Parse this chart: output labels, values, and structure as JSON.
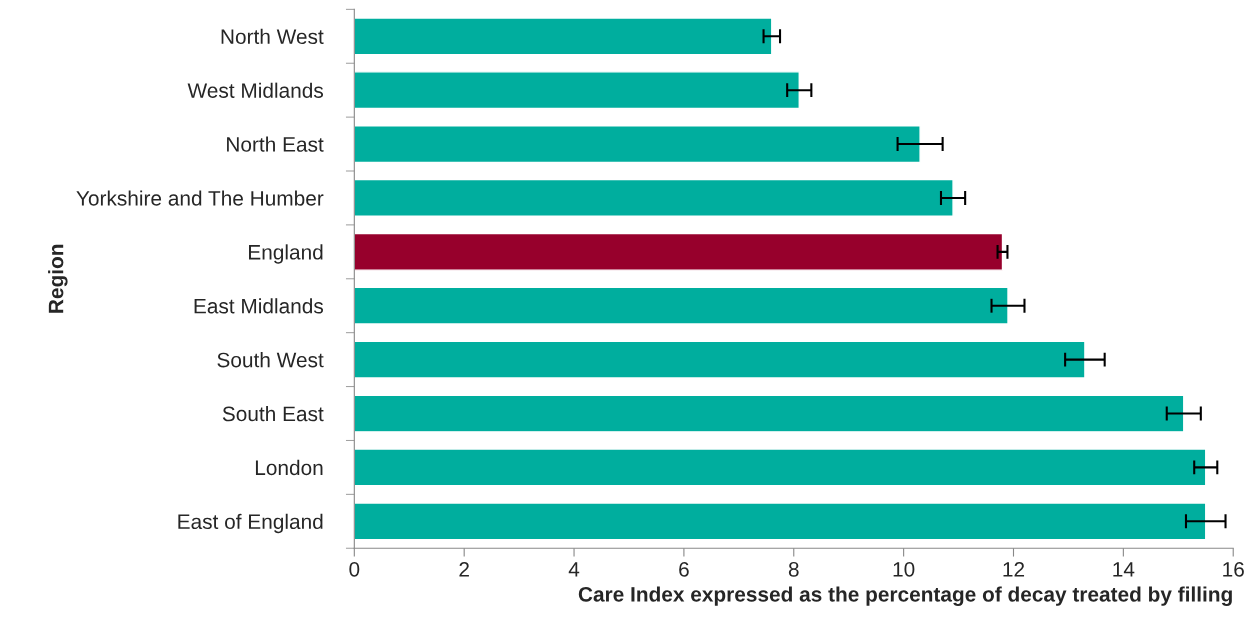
{
  "chart_data": {
    "type": "bar",
    "orientation": "horizontal",
    "xlabel": "Care Index expressed as the percentage of decay treated by filling",
    "ylabel": "Region",
    "categories": [
      "North West",
      "West Midlands",
      "North East",
      "Yorkshire and The Humber",
      "England",
      "East Midlands",
      "South West",
      "South East",
      "London",
      "East of England"
    ],
    "values": [
      7.6,
      8.1,
      10.3,
      10.9,
      11.8,
      11.9,
      13.3,
      15.1,
      15.5,
      15.5
    ],
    "errors": [
      0.15,
      0.22,
      0.41,
      0.22,
      0.09,
      0.3,
      0.36,
      0.31,
      0.21,
      0.36
    ],
    "colors": [
      "#00ae9e",
      "#00ae9e",
      "#00ae9e",
      "#00ae9e",
      "#97002c",
      "#00ae9e",
      "#00ae9e",
      "#00ae9e",
      "#00ae9e",
      "#00ae9e"
    ],
    "xlim": [
      0,
      16
    ],
    "xticks": [
      0,
      2,
      4,
      6,
      8,
      10,
      12,
      14,
      16
    ],
    "grid": false,
    "legend": false
  }
}
